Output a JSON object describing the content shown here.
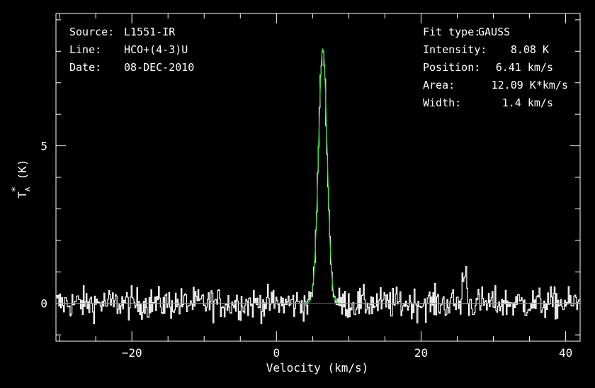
{
  "info_left": [
    {
      "label": "Source:",
      "value": "L1551-IR"
    },
    {
      "label": "Line:",
      "value": "HCO+(4-3)U"
    },
    {
      "label": "Date:",
      "value": "08-DEC-2010"
    }
  ],
  "info_right": [
    {
      "label": "Fit type:",
      "value": "GAUSS"
    },
    {
      "label": "Intensity:",
      "value": "8.08 K"
    },
    {
      "label": "Position:",
      "value": "6.41 km/s"
    },
    {
      "label": "Area:",
      "value": "12.09 K*km/s"
    },
    {
      "label": "Width:",
      "value": "1.4 km/s"
    }
  ],
  "colors": {
    "background": "#000000",
    "spectrum": "#ffffff",
    "fit": "#33dd33",
    "baseline": "#dd2222",
    "frame": "#ffffff"
  },
  "chart_data": {
    "type": "line",
    "xlabel": "Velocity (km/s)",
    "ylabel": "T_A^* (K)",
    "xlim": [
      -30.5,
      42
    ],
    "ylim": [
      -1.2,
      9.2
    ],
    "xticks": [
      -20,
      0,
      20,
      40
    ],
    "yticks": [
      0,
      5
    ],
    "grid": false,
    "series": [
      {
        "role": "observed spectrum",
        "style": "histogram",
        "noise_rms": 0.25,
        "x": [
          -30.0,
          0.0,
          3.0,
          4.0,
          5.0,
          5.5,
          6.0,
          6.41,
          7.0,
          7.5,
          8.0,
          9.0,
          10.0,
          26.0,
          41.5
        ],
        "y": [
          0.0,
          0.1,
          0.25,
          0.4,
          2.5,
          5.6,
          8.0,
          8.6,
          7.2,
          3.7,
          1.0,
          0.0,
          0.1,
          0.85,
          0.1
        ]
      },
      {
        "role": "gaussian fit",
        "model": "gauss",
        "amplitude": 8.08,
        "center": 6.41,
        "fwhm": 1.4,
        "x_range": [
          -30.5,
          42
        ]
      },
      {
        "role": "baseline",
        "x": [
          3.0,
          8.5
        ],
        "y": [
          0,
          0
        ]
      }
    ]
  }
}
